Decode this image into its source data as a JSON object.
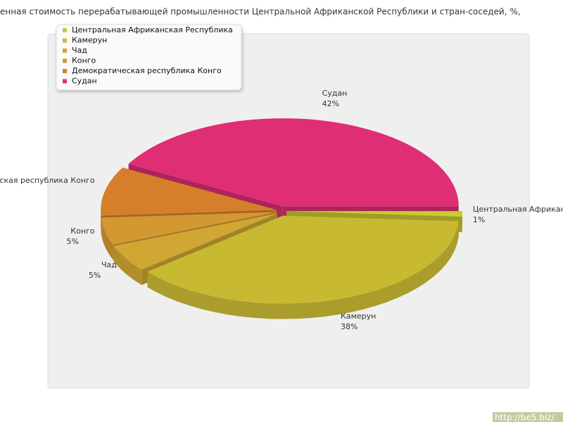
{
  "chart_data": {
    "type": "pie3d",
    "title": "енная стоимость перерабатывающей промышленности Центральной Африканской Республики и стран-соседей, %,",
    "categories": [
      "Центральная Африканская Республика",
      "Камерун",
      "Чад",
      "Конго",
      "Демократическая республика Конго",
      "Судан"
    ],
    "values": [
      1,
      38,
      5,
      5,
      9,
      42
    ],
    "value_labels": [
      "1%",
      "38%",
      "5%",
      "5%",
      null,
      "42%"
    ],
    "colors": [
      "#c9cb32",
      "#c8b932",
      "#d0a732",
      "#d39831",
      "#d67f2b",
      "#df2e74"
    ],
    "legend": "top-left",
    "watermark": "http://be5.biz/"
  }
}
